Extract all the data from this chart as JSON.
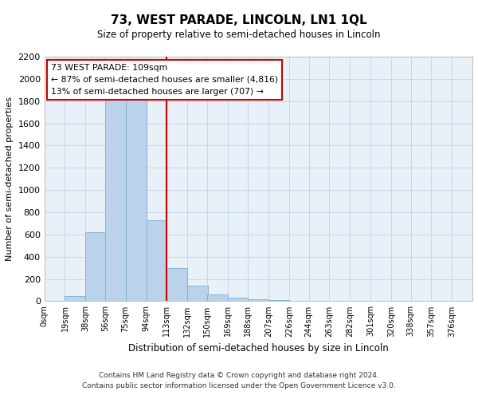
{
  "title": "73, WEST PARADE, LINCOLN, LN1 1QL",
  "subtitle": "Size of property relative to semi-detached houses in Lincoln",
  "xlabel": "Distribution of semi-detached houses by size in Lincoln",
  "ylabel": "Number of semi-detached properties",
  "footnote1": "Contains HM Land Registry data © Crown copyright and database right 2024.",
  "footnote2": "Contains public sector information licensed under the Open Government Licence v3.0.",
  "annotation_title": "73 WEST PARADE: 109sqm",
  "annotation_line1": "← 87% of semi-detached houses are smaller (4,816)",
  "annotation_line2": "13% of semi-detached houses are larger (707) →",
  "bin_starts": [
    0,
    19,
    38,
    56,
    75,
    94,
    113,
    132,
    150,
    169,
    188,
    207,
    226,
    244,
    263,
    282,
    301,
    320,
    338,
    357
  ],
  "bin_labels": [
    "0sqm",
    "19sqm",
    "38sqm",
    "56sqm",
    "75sqm",
    "94sqm",
    "113sqm",
    "132sqm",
    "150sqm",
    "169sqm",
    "188sqm",
    "207sqm",
    "226sqm",
    "244sqm",
    "263sqm",
    "282sqm",
    "301sqm",
    "320sqm",
    "338sqm",
    "357sqm",
    "376sqm"
  ],
  "counts": [
    5,
    50,
    620,
    1830,
    1810,
    730,
    300,
    140,
    60,
    35,
    20,
    10,
    5,
    2,
    2,
    1,
    1,
    0,
    0,
    0
  ],
  "bar_color": "#bad3ea",
  "bar_edge_color": "#7aadd4",
  "vline_color": "#cc0000",
  "vline_x": 113,
  "annotation_box_color": "#ffffff",
  "annotation_box_edge": "#cc0000",
  "ylim": [
    0,
    2200
  ],
  "yticks": [
    0,
    200,
    400,
    600,
    800,
    1000,
    1200,
    1400,
    1600,
    1800,
    2000,
    2200
  ],
  "grid_color": "#c8d8ec",
  "background_color": "#e8f0f8"
}
